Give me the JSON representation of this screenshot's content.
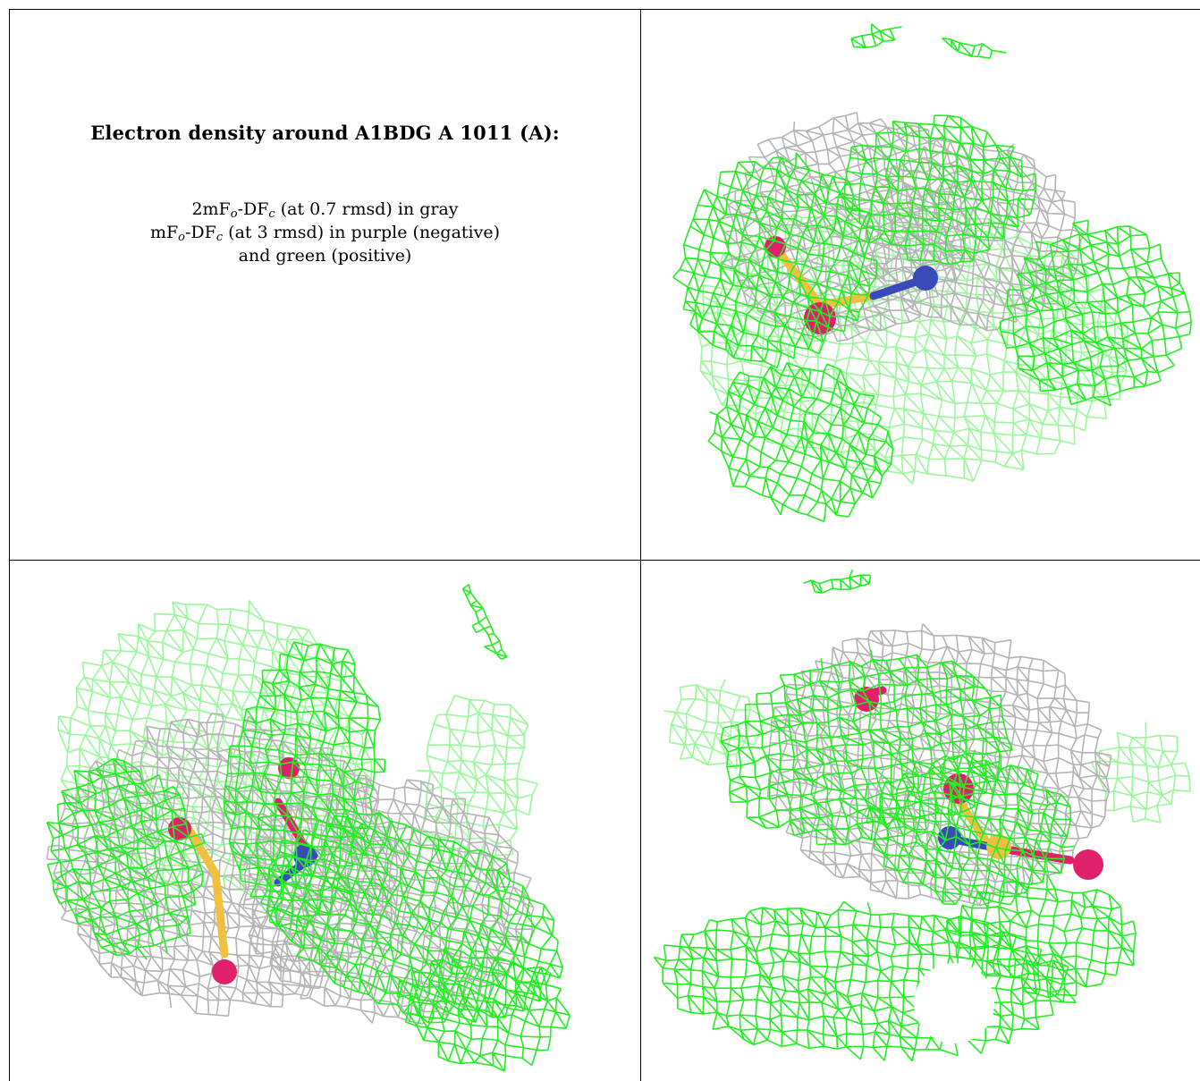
{
  "title": "Electron density around A1BDG A 1011 (A):",
  "legend": {
    "line1": {
      "pre": "2mF",
      "sub1": "o",
      "mid": "-DF",
      "sub2": "c",
      "post": " (at 0.7 rmsd) in gray"
    },
    "line2": {
      "pre": "mF",
      "sub1": "o",
      "mid": "-DF",
      "sub2": "c",
      "post": " (at 3 rmsd) in purple (negative)"
    },
    "line3": "and green (positive)"
  },
  "colors": {
    "positive_mesh": "#22ee22",
    "gray_mesh": "#b4b4b4",
    "oxygen": "#e0206a",
    "sulfur": "#f0c040",
    "nitrogen": "#3a4ab8"
  }
}
